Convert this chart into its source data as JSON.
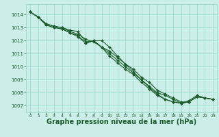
{
  "background_color": "#cceee8",
  "grid_color": "#99ddcc",
  "line_color": "#1a5c2a",
  "xlabel": "Graphe pression niveau de la mer (hPa)",
  "xlabel_fontsize": 7,
  "xlim": [
    -0.5,
    23.5
  ],
  "ylim": [
    1006.5,
    1014.8
  ],
  "yticks": [
    1007,
    1008,
    1009,
    1010,
    1011,
    1012,
    1013,
    1014
  ],
  "xticks": [
    0,
    1,
    2,
    3,
    4,
    5,
    6,
    7,
    8,
    9,
    10,
    11,
    12,
    13,
    14,
    15,
    16,
    17,
    18,
    19,
    20,
    21,
    22,
    23
  ],
  "series": [
    [
      1014.2,
      1013.8,
      1013.3,
      1013.1,
      1013.0,
      1012.8,
      1012.7,
      1011.9,
      1012.0,
      1012.0,
      1011.5,
      1010.8,
      1010.2,
      1009.8,
      1009.2,
      1008.8,
      1008.2,
      1007.9,
      1007.6,
      1007.3,
      1007.3,
      1007.7,
      1007.6,
      1007.5
    ],
    [
      1014.2,
      1013.8,
      1013.3,
      1013.1,
      1013.0,
      1012.7,
      1012.5,
      1012.1,
      1011.9,
      1011.5,
      1011.2,
      1010.7,
      1010.2,
      1009.6,
      1009.0,
      1008.5,
      1008.0,
      1007.8,
      1007.5,
      1007.2,
      1007.4,
      1007.8,
      1007.6,
      1007.5
    ],
    [
      1014.2,
      1013.8,
      1013.2,
      1013.0,
      1012.9,
      1012.6,
      1012.4,
      1011.8,
      1012.0,
      1011.5,
      1011.0,
      1010.5,
      1010.0,
      1009.5,
      1009.0,
      1008.4,
      1007.9,
      1007.5,
      1007.3,
      1007.2,
      1007.3,
      1007.7,
      1007.6,
      1007.5
    ],
    [
      1014.2,
      1013.8,
      1013.2,
      1013.0,
      1012.9,
      1012.6,
      1012.3,
      1011.8,
      1012.0,
      1011.5,
      1010.8,
      1010.3,
      1009.8,
      1009.4,
      1008.8,
      1008.3,
      1007.8,
      1007.5,
      1007.3,
      1007.2,
      1007.3,
      1007.7,
      1007.6,
      1007.5
    ]
  ],
  "marker": "D",
  "marker_size": 2.0,
  "linewidth": 0.8
}
